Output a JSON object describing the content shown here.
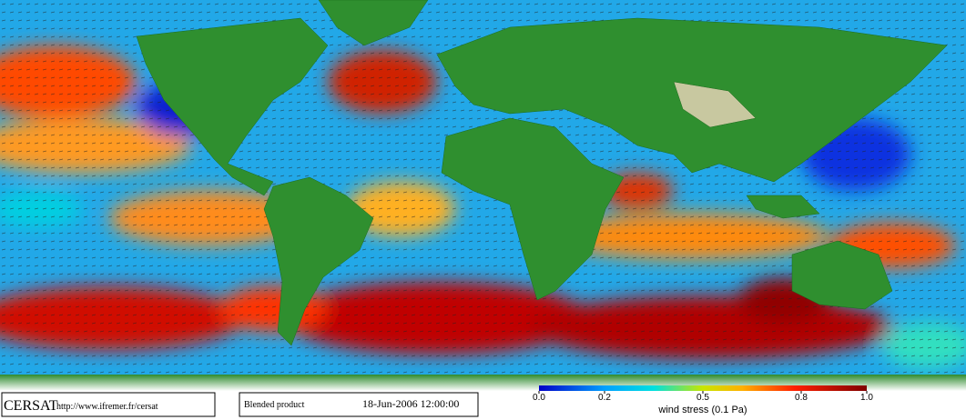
{
  "footer": {
    "logo": "CERSAT",
    "url": "http://www.ifremer.fr/cersat",
    "product": "Blended product",
    "datetime": "18-Jun-2006 12:00:00"
  },
  "colorbar": {
    "label": "wind stress (0.1 Pa)",
    "lim": [
      0,
      1
    ],
    "ticks": [
      {
        "value": 0,
        "label": "0.0"
      },
      0.2,
      0.5,
      0.8,
      {
        "value": 1,
        "label": "1.0"
      }
    ]
  }
}
